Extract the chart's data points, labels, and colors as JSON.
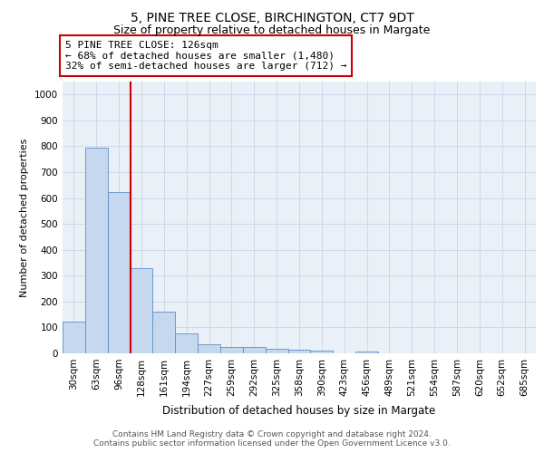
{
  "title": "5, PINE TREE CLOSE, BIRCHINGTON, CT7 9DT",
  "subtitle": "Size of property relative to detached houses in Margate",
  "xlabel": "Distribution of detached houses by size in Margate",
  "ylabel": "Number of detached properties",
  "bar_labels": [
    "30sqm",
    "63sqm",
    "96sqm",
    "128sqm",
    "161sqm",
    "194sqm",
    "227sqm",
    "259sqm",
    "292sqm",
    "325sqm",
    "358sqm",
    "390sqm",
    "423sqm",
    "456sqm",
    "489sqm",
    "521sqm",
    "554sqm",
    "587sqm",
    "620sqm",
    "652sqm",
    "685sqm"
  ],
  "bar_values": [
    122,
    795,
    622,
    330,
    160,
    78,
    36,
    26,
    25,
    18,
    14,
    9,
    0,
    8,
    0,
    0,
    0,
    0,
    0,
    0,
    0
  ],
  "bar_color": "#c5d8ee",
  "bar_edge_color": "#5b8fc9",
  "vline_color": "#cc0000",
  "annotation_text": "5 PINE TREE CLOSE: 126sqm\n← 68% of detached houses are smaller (1,480)\n32% of semi-detached houses are larger (712) →",
  "annotation_box_color": "#cc0000",
  "ylim": [
    0,
    1050
  ],
  "yticks": [
    0,
    100,
    200,
    300,
    400,
    500,
    600,
    700,
    800,
    900,
    1000
  ],
  "grid_color": "#c8d4e8",
  "background_color": "#eaf0f8",
  "footer_text": "Contains HM Land Registry data © Crown copyright and database right 2024.\nContains public sector information licensed under the Open Government Licence v3.0.",
  "title_fontsize": 10,
  "subtitle_fontsize": 9,
  "xlabel_fontsize": 8.5,
  "ylabel_fontsize": 8,
  "tick_fontsize": 7.5,
  "annotation_fontsize": 8,
  "footer_fontsize": 6.5
}
